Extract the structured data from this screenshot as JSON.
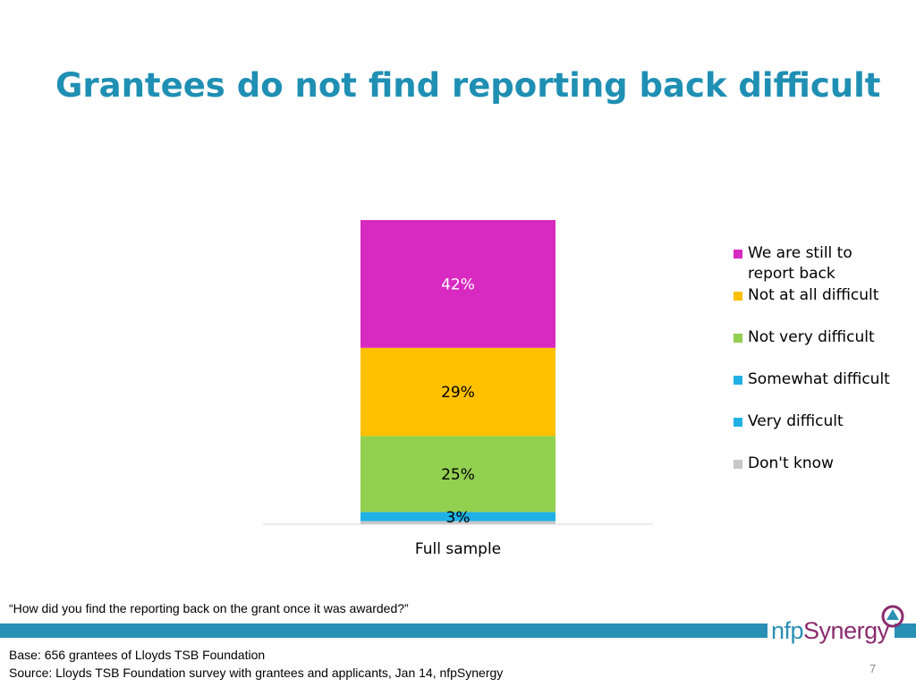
{
  "title": "Grantees do not find reporting back difficult",
  "question": "“How did you find the reporting back on the grant once it was awarded?”",
  "base": "Base: 656 grantees of Lloyds TSB Foundation",
  "source": "Source: Lloyds TSB Foundation survey with grantees and applicants, Jan 14, nfpSynergy",
  "page_number": "7",
  "logo": {
    "nfp": "nfp",
    "synergy": "Synergy"
  },
  "chart_data": {
    "type": "bar",
    "stacked": true,
    "categories": [
      "Full sample"
    ],
    "series": [
      {
        "name": "Don't know",
        "values": [
          1
        ],
        "color": "#c8c8c8",
        "label": ""
      },
      {
        "name": "Very difficult",
        "values": [
          0
        ],
        "color": "#1fb1e6",
        "label": ""
      },
      {
        "name": "Somewhat difficult",
        "values": [
          3
        ],
        "color": "#1fb1e6",
        "label": "3%"
      },
      {
        "name": "Not very difficult",
        "values": [
          25
        ],
        "color": "#92d050",
        "label": "25%"
      },
      {
        "name": "Not at all difficult",
        "values": [
          29
        ],
        "color": "#ffc000",
        "label": "29%"
      },
      {
        "name": "We are still to report back",
        "values": [
          42
        ],
        "color": "#d82ac0",
        "label": "42%"
      }
    ],
    "legend_order": [
      "We are still to report back",
      "Not at all difficult",
      "Not very difficult",
      "Somewhat difficult",
      "Very difficult",
      "Don't know"
    ],
    "legend_position": "right",
    "ylim": [
      0,
      100
    ],
    "grid": false
  }
}
